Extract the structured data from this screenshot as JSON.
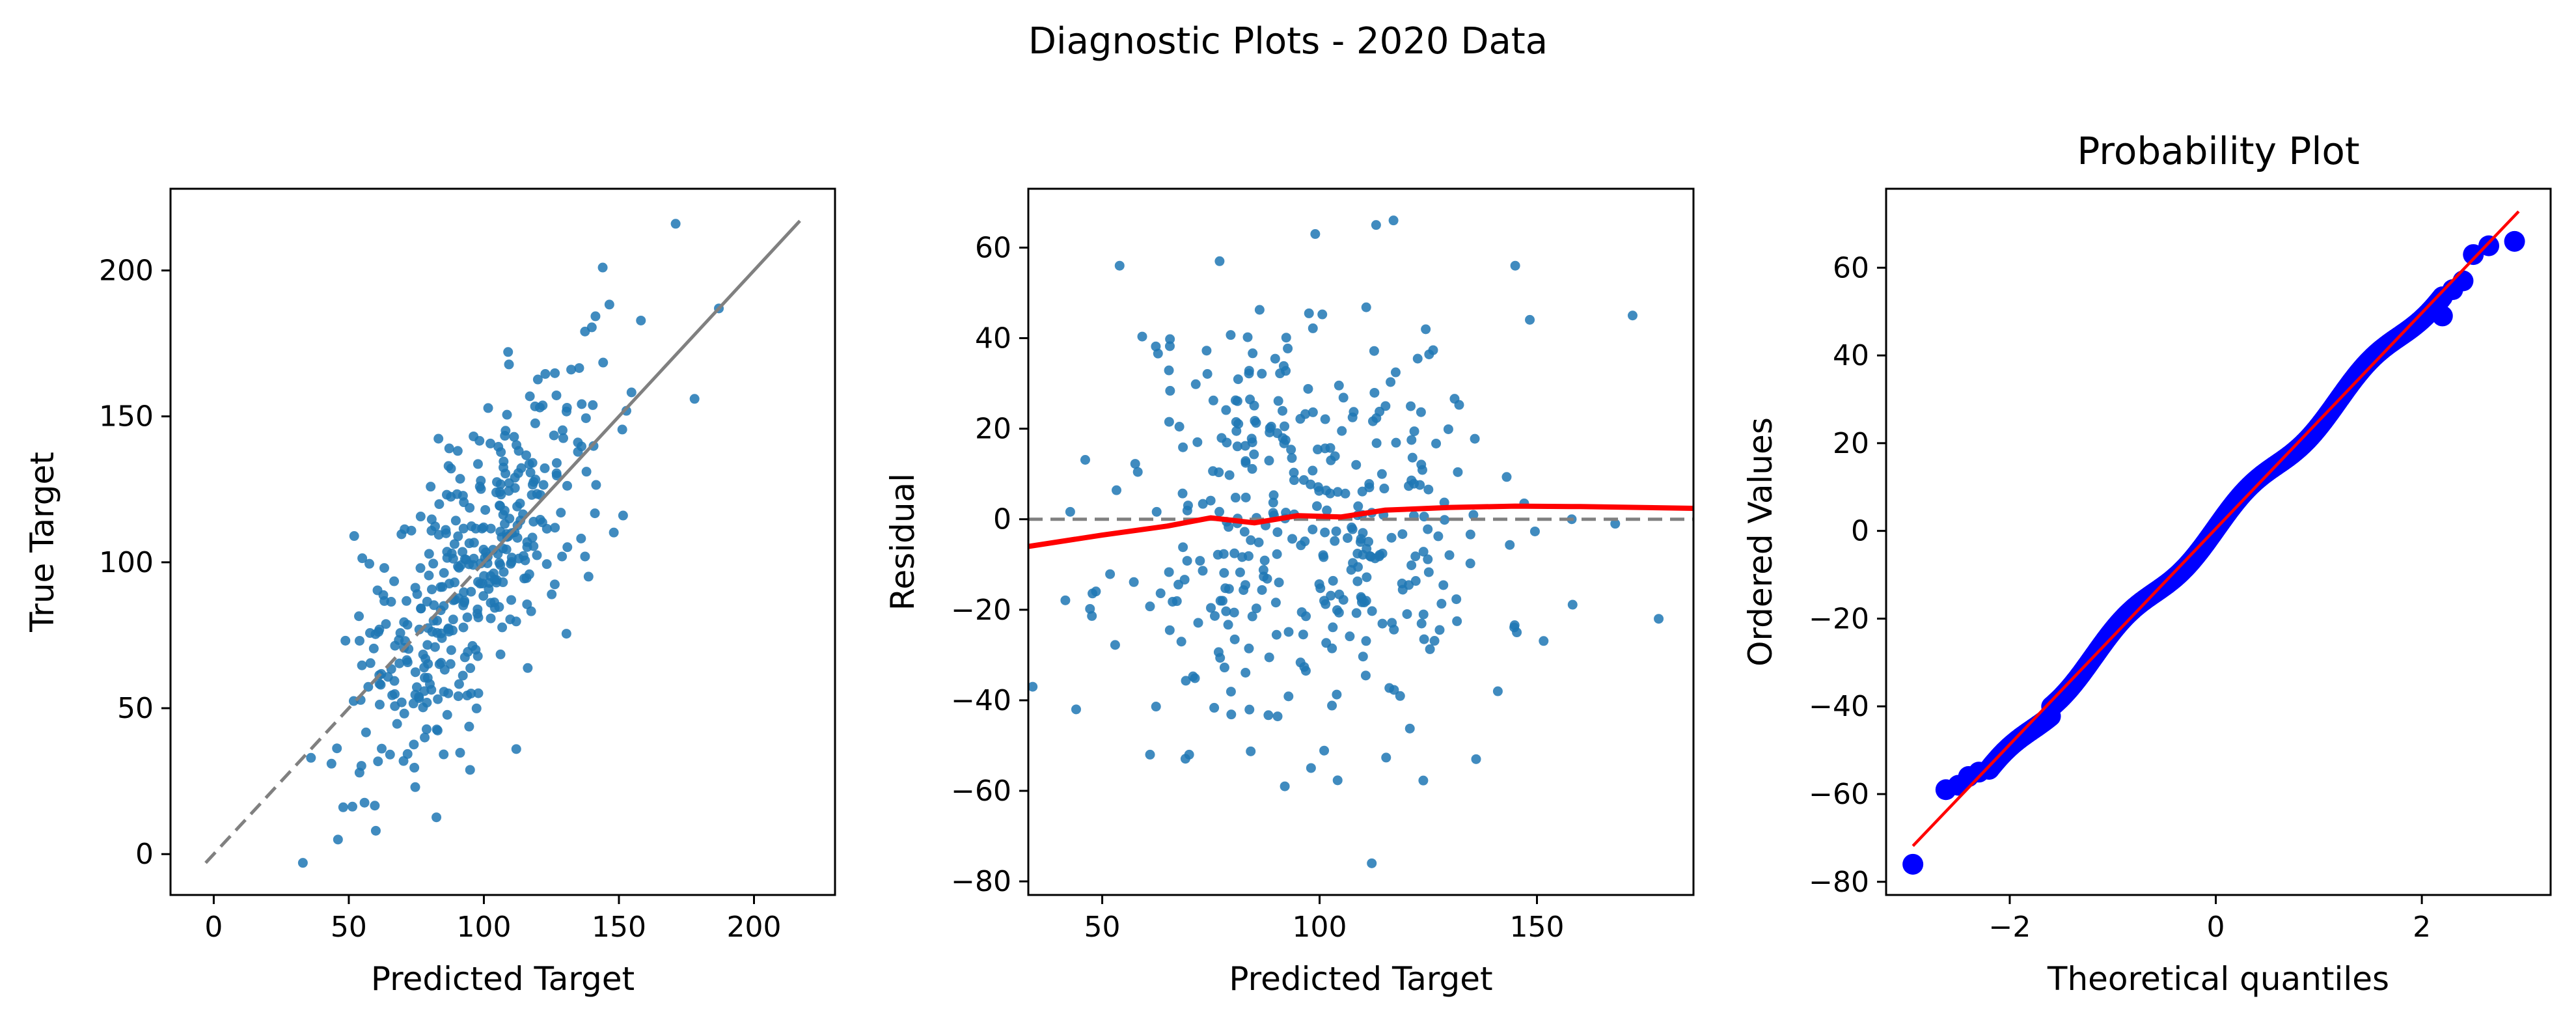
{
  "figure": {
    "suptitle": "Diagnostic Plots - 2020 Data",
    "colors": {
      "point": "#1f77b4",
      "identity_line": "#808080",
      "trend_line": "#ff0000",
      "qq_point": "#0000ff",
      "qq_line": "#ff0000",
      "axes": "#000000"
    }
  },
  "chart_data": [
    {
      "id": "pred_vs_true",
      "type": "scatter",
      "title": "",
      "xlabel": "Predicted Target",
      "ylabel": "True Target",
      "xlim": [
        -16,
        230
      ],
      "ylim": [
        -14,
        228
      ],
      "xticks": [
        0,
        50,
        100,
        150,
        200
      ],
      "yticks": [
        0,
        50,
        100,
        150,
        200
      ],
      "grid": false,
      "reference_line": {
        "style": "dashed-then-solid",
        "points": [
          [
            -3,
            -3
          ],
          [
            217,
            217
          ]
        ]
      },
      "highlight_points": [
        [
          33,
          -3
        ],
        [
          171,
          216
        ],
        [
          144,
          201
        ],
        [
          187,
          187
        ],
        [
          178,
          156
        ],
        [
          112,
          36
        ],
        [
          60,
          8
        ],
        [
          46,
          5
        ],
        [
          36,
          33
        ],
        [
          52,
          109
        ]
      ],
      "generated_cloud": {
        "n": 390,
        "seed": 7,
        "x_center": 96,
        "x_spread": 24,
        "y_slope": 1.0,
        "y_noise": 25
      }
    },
    {
      "id": "residuals",
      "type": "scatter",
      "title": "",
      "xlabel": "Predicted Target",
      "ylabel": "Residual",
      "xlim": [
        33,
        186
      ],
      "ylim": [
        -83,
        73
      ],
      "xticks": [
        50,
        100,
        150
      ],
      "yticks": [
        -80,
        -60,
        -40,
        -20,
        0,
        20,
        40,
        60
      ],
      "grid": false,
      "zero_line": 0,
      "trend_line": [
        [
          33,
          -6
        ],
        [
          50,
          -3.5
        ],
        [
          65,
          -1.5
        ],
        [
          75,
          0.3
        ],
        [
          85,
          -0.8
        ],
        [
          95,
          0.8
        ],
        [
          105,
          0.5
        ],
        [
          115,
          2
        ],
        [
          130,
          2.6
        ],
        [
          145,
          2.9
        ],
        [
          160,
          2.8
        ],
        [
          186,
          2.4
        ]
      ],
      "highlight_points": [
        [
          112,
          -76
        ],
        [
          54,
          56
        ],
        [
          77,
          57
        ],
        [
          99,
          63
        ],
        [
          113,
          65
        ],
        [
          117,
          66
        ],
        [
          145,
          56
        ],
        [
          172,
          45
        ],
        [
          178,
          -22
        ],
        [
          141,
          -38
        ],
        [
          34,
          -37
        ],
        [
          44,
          -42
        ],
        [
          92,
          -59
        ],
        [
          136,
          -53
        ],
        [
          61,
          -52
        ],
        [
          70,
          -52
        ],
        [
          158,
          0
        ],
        [
          168,
          -1
        ]
      ],
      "generated_cloud": {
        "n": 370,
        "seed": 11,
        "x_center": 97,
        "x_spread": 22,
        "y_center": 0,
        "y_noise": 25
      }
    },
    {
      "id": "probability_plot",
      "type": "scatter",
      "title": "Probability Plot",
      "xlabel": "Theoretical quantiles",
      "ylabel": "Ordered Values",
      "xlim": [
        -3.2,
        3.25
      ],
      "ylim": [
        -83,
        78
      ],
      "xticks": [
        -2,
        0,
        2
      ],
      "yticks": [
        -80,
        -60,
        -40,
        -20,
        0,
        20,
        40,
        60
      ],
      "grid": false,
      "fit_line": {
        "slope": 24.6,
        "intercept": 0.5,
        "x_range": [
          -2.94,
          2.94
        ]
      },
      "tail_points": [
        [
          -2.94,
          -76
        ],
        [
          -2.62,
          -59
        ],
        [
          -2.5,
          -58
        ],
        [
          -2.4,
          -56
        ],
        [
          -2.3,
          -55
        ],
        [
          2.2,
          49
        ],
        [
          2.3,
          55
        ],
        [
          2.4,
          57
        ],
        [
          2.5,
          63
        ],
        [
          2.65,
          65
        ],
        [
          2.9,
          66
        ]
      ],
      "generated_quantiles": {
        "n": 400,
        "x_range": [
          -2.2,
          2.2
        ],
        "slope": 24.6,
        "intercept": 0.5,
        "wobble": 1.6
      }
    }
  ]
}
